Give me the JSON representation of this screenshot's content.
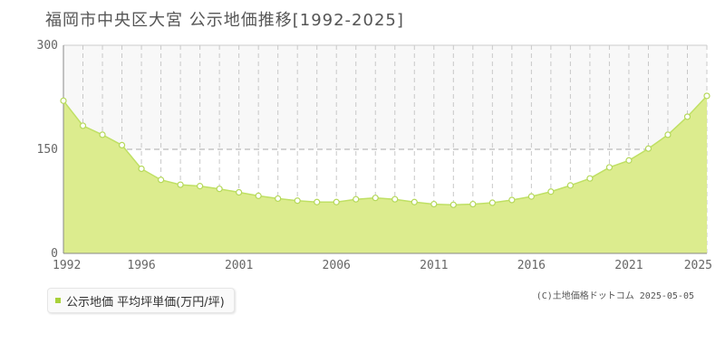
{
  "title": "福岡市中央区大宮  公示地価推移[1992-2025]",
  "legend": {
    "label": "公示地価 平均坪単価(万円/坪)"
  },
  "copyright": "(C)土地価格ドットコム 2025-05-05",
  "colors": {
    "fill": "#dcec8e",
    "line": "#bfe064",
    "marker_stroke": "#b5d85a",
    "swatch": "#a8d13a",
    "band": "#f8f8f8"
  },
  "chart_data": {
    "type": "area",
    "x": [
      1992,
      1993,
      1994,
      1995,
      1996,
      1997,
      1998,
      1999,
      2000,
      2001,
      2002,
      2003,
      2004,
      2005,
      2006,
      2007,
      2008,
      2009,
      2010,
      2011,
      2012,
      2013,
      2014,
      2015,
      2016,
      2017,
      2018,
      2019,
      2020,
      2021,
      2022,
      2023,
      2024,
      2025
    ],
    "series": [
      {
        "values": [
          220,
          184,
          171,
          156,
          122,
          106,
          99,
          97,
          93,
          88,
          83,
          79,
          76,
          74,
          74,
          78,
          80,
          78,
          74,
          71,
          70,
          71,
          73,
          77,
          82,
          89,
          98,
          108,
          124,
          134,
          151,
          171,
          197,
          227
        ]
      }
    ],
    "y_ticks": [
      0,
      150,
      300
    ],
    "x_tick_labels": [
      "1992",
      "1996",
      "2001",
      "2006",
      "2011",
      "2016",
      "2021",
      "2025"
    ],
    "ylim": [
      0,
      300
    ],
    "xlim": [
      1992,
      2025
    ],
    "grid": true
  }
}
